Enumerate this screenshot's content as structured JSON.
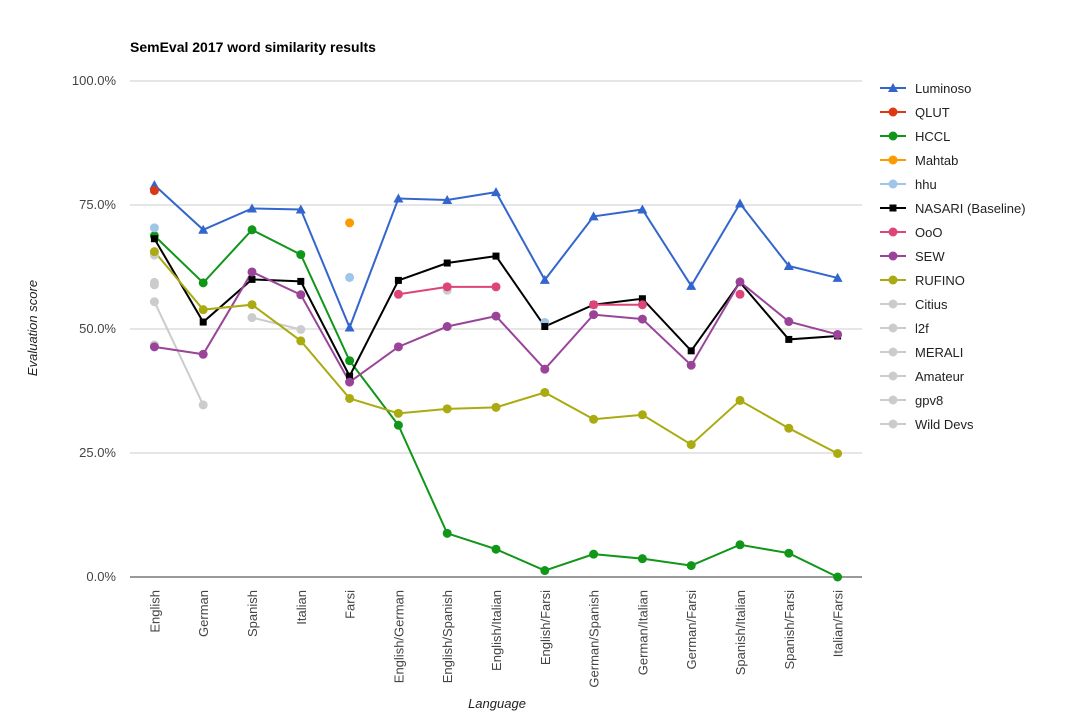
{
  "chart_data": {
    "type": "line",
    "title": "SemEval 2017 word similarity results",
    "xlabel": "Language",
    "ylabel": "Evaluation score",
    "ylim": [
      0,
      1
    ],
    "yticks": [
      {
        "value": 0,
        "label": "0.0%"
      },
      {
        "value": 0.25,
        "label": "25.0%"
      },
      {
        "value": 0.5,
        "label": "50.0%"
      },
      {
        "value": 0.75,
        "label": "75.0%"
      },
      {
        "value": 1.0,
        "label": "100.0%"
      }
    ],
    "grid": true,
    "legend_position": "right",
    "categories": [
      "English",
      "German",
      "Spanish",
      "Italian",
      "Farsi",
      "English/German",
      "English/Spanish",
      "English/Italian",
      "English/Farsi",
      "German/Spanish",
      "German/Italian",
      "German/Farsi",
      "Spanish/Italian",
      "Spanish/Farsi",
      "Italian/Farsi"
    ],
    "series": [
      {
        "name": "Luminoso",
        "color": "#3366cc",
        "marker": "triangle",
        "values": [
          0.79,
          0.7,
          0.743,
          0.741,
          0.503,
          0.763,
          0.76,
          0.776,
          0.599,
          0.727,
          0.741,
          0.587,
          0.753,
          0.627,
          0.603
        ]
      },
      {
        "name": "QLUT",
        "color": "#dc3912",
        "marker": "circle",
        "values": [
          0.779,
          null,
          null,
          null,
          null,
          null,
          null,
          null,
          null,
          null,
          null,
          null,
          null,
          null,
          null
        ]
      },
      {
        "name": "HCCL",
        "color": "#109618",
        "marker": "circle",
        "values": [
          0.688,
          0.593,
          0.7,
          0.65,
          0.436,
          0.306,
          0.088,
          0.056,
          0.013,
          0.046,
          0.037,
          0.023,
          0.065,
          0.048,
          0.0
        ]
      },
      {
        "name": "Mahtab",
        "color": "#ff9900",
        "marker": "circle",
        "values": [
          null,
          null,
          null,
          null,
          0.714,
          null,
          null,
          null,
          null,
          null,
          null,
          null,
          null,
          null,
          null
        ]
      },
      {
        "name": "hhu",
        "color": "#9fc5e8",
        "marker": "circle",
        "values": [
          0.704,
          null,
          null,
          null,
          0.604,
          null,
          null,
          null,
          0.513,
          null,
          null,
          null,
          null,
          null,
          null
        ]
      },
      {
        "name": "NASARI (Baseline)",
        "color": "#000000",
        "marker": "square",
        "values": [
          0.682,
          0.514,
          0.6,
          0.596,
          0.405,
          0.598,
          0.633,
          0.647,
          0.505,
          0.549,
          0.561,
          0.456,
          0.594,
          0.479,
          0.486
        ]
      },
      {
        "name": "OoO",
        "color": "#dd4477",
        "marker": "circle",
        "values": [
          null,
          null,
          null,
          null,
          null,
          0.57,
          0.585,
          0.585,
          null,
          0.549,
          0.549,
          null,
          0.57,
          null,
          null
        ]
      },
      {
        "name": "SEW",
        "color": "#994499",
        "marker": "circle",
        "values": [
          0.464,
          0.449,
          0.615,
          0.569,
          0.393,
          0.464,
          0.505,
          0.526,
          0.419,
          0.529,
          0.52,
          0.427,
          0.595,
          0.515,
          0.489
        ]
      },
      {
        "name": "RUFINO",
        "color": "#aaaa11",
        "marker": "circle",
        "values": [
          0.656,
          0.539,
          0.549,
          0.476,
          0.36,
          0.33,
          0.339,
          0.342,
          0.372,
          0.318,
          0.327,
          0.267,
          0.356,
          0.3,
          0.249
        ]
      },
      {
        "name": "Citius",
        "color": "#cccccc",
        "marker": "circle",
        "values": [
          0.555,
          0.347,
          null,
          null,
          null,
          null,
          null,
          null,
          null,
          null,
          null,
          null,
          null,
          null,
          null
        ]
      },
      {
        "name": "l2f",
        "color": "#cccccc",
        "marker": "circle",
        "values": [
          0.649,
          null,
          null,
          null,
          null,
          null,
          null,
          null,
          null,
          null,
          null,
          null,
          null,
          null,
          null
        ]
      },
      {
        "name": "MERALI",
        "color": "#cccccc",
        "marker": "circle",
        "values": [
          0.594,
          null,
          null,
          null,
          null,
          null,
          null,
          null,
          null,
          null,
          null,
          null,
          null,
          null,
          null
        ]
      },
      {
        "name": "Amateur",
        "color": "#cccccc",
        "marker": "circle",
        "values": [
          0.589,
          null,
          null,
          null,
          null,
          null,
          null,
          null,
          null,
          null,
          null,
          null,
          null,
          null,
          null
        ]
      },
      {
        "name": "gpv8",
        "color": "#cccccc",
        "marker": "circle",
        "values": [
          0.468,
          null,
          0.523,
          0.499,
          null,
          null,
          0.578,
          null,
          null,
          null,
          null,
          null,
          null,
          null,
          null
        ]
      },
      {
        "name": "Wild Devs",
        "color": "#cccccc",
        "marker": "circle",
        "values": [
          0.466,
          null,
          null,
          null,
          null,
          null,
          null,
          null,
          null,
          null,
          null,
          null,
          null,
          null,
          null
        ]
      }
    ]
  }
}
